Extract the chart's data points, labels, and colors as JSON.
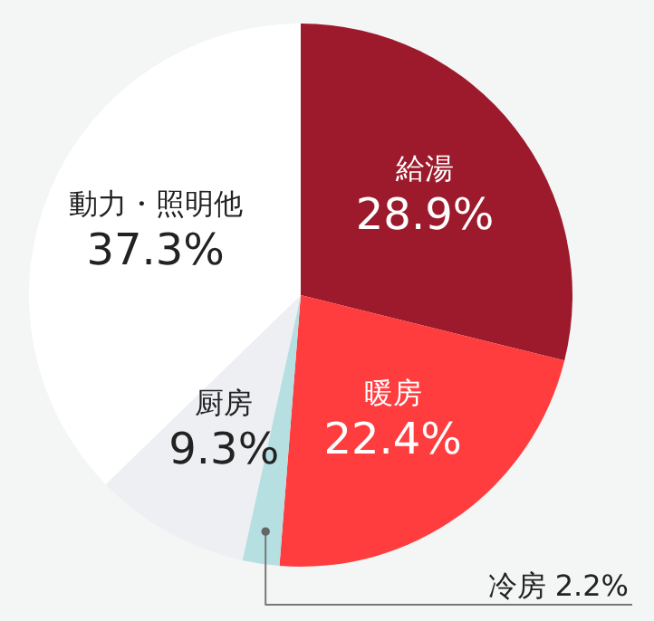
{
  "chart_data": {
    "type": "pie",
    "categories": [
      "給湯",
      "暖房",
      "冷房",
      "厨房",
      "動力・照明他"
    ],
    "values": [
      28.9,
      22.4,
      2.2,
      9.3,
      37.3
    ],
    "colors": [
      "#9c1a2b",
      "#ff3d3f",
      "#b6dfe2",
      "#edeff2",
      "#ffffff"
    ],
    "value_labels": [
      "28.9%",
      "22.4%",
      "2.2%",
      "9.3%",
      "37.3%"
    ]
  }
}
